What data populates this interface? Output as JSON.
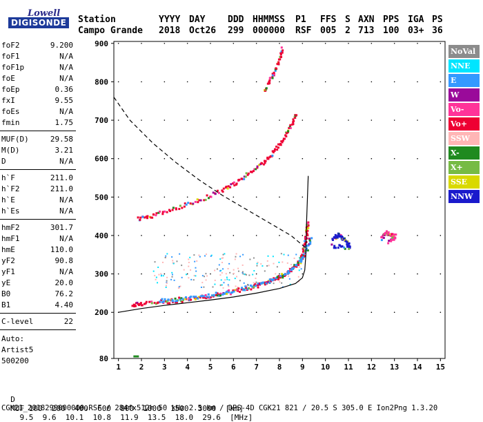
{
  "logo": {
    "top": "Lowell",
    "bottom": "DIGISONDE"
  },
  "header": {
    "labels": [
      "Station",
      "YYYY",
      "DAY",
      "DDD",
      "HHMMSS",
      "P1",
      "FFS",
      "S",
      "AXN",
      "PPS",
      "IGA",
      "PS"
    ],
    "values": [
      "Campo Grande",
      "2018",
      "Oct26",
      "299",
      "000000",
      "RSF",
      "005",
      "2",
      "713",
      "100",
      "03+",
      "36"
    ]
  },
  "params": [
    {
      "k": "foF2",
      "v": "9.200"
    },
    {
      "k": "foF1",
      "v": "N/A"
    },
    {
      "k": "foF1p",
      "v": "N/A"
    },
    {
      "k": "foE",
      "v": "N/A"
    },
    {
      "k": "foEp",
      "v": "0.36"
    },
    {
      "k": "fxI",
      "v": "9.55"
    },
    {
      "k": "foEs",
      "v": "N/A"
    },
    {
      "k": "fmin",
      "v": "1.75"
    },
    {
      "k": "MUF(D)",
      "v": "29.58"
    },
    {
      "k": "M(D)",
      "v": "3.21"
    },
    {
      "k": "D",
      "v": "N/A"
    },
    {
      "k": "h`F",
      "v": "211.0"
    },
    {
      "k": "h`F2",
      "v": "211.0"
    },
    {
      "k": "h`E",
      "v": "N/A"
    },
    {
      "k": "h`Es",
      "v": "N/A"
    },
    {
      "k": "hmF2",
      "v": "301.7"
    },
    {
      "k": "hmF1",
      "v": "N/A"
    },
    {
      "k": "hmE",
      "v": "110.0"
    },
    {
      "k": "yF2",
      "v": "90.8"
    },
    {
      "k": "yF1",
      "v": "N/A"
    },
    {
      "k": "yE",
      "v": "20.0"
    },
    {
      "k": "B0",
      "v": "76.2"
    },
    {
      "k": "B1",
      "v": "4.40"
    },
    {
      "k": "C-level",
      "v": "22"
    }
  ],
  "autoscale": {
    "line1": "Auto:",
    "line2": "Artist5",
    "line3": "500200"
  },
  "legend": [
    {
      "label": "NoVal",
      "color": "#8c8c8c"
    },
    {
      "label": "NNE",
      "color": "#00e5ff"
    },
    {
      "label": "E",
      "color": "#3399ff"
    },
    {
      "label": "W",
      "color": "#9a0a9a"
    },
    {
      "label": "Vo-",
      "color": "#ff3399"
    },
    {
      "label": "Vo+",
      "color": "#ee0033"
    },
    {
      "label": "SSW",
      "color": "#ffb6b6"
    },
    {
      "label": "X-",
      "color": "#1f8a1f"
    },
    {
      "label": "X+",
      "color": "#77bb44"
    },
    {
      "label": "SSE",
      "color": "#d9d900"
    },
    {
      "label": "NNW",
      "color": "#1a1acc"
    }
  ],
  "footer": {
    "d_label": "D",
    "d_values": [
      "100",
      "200",
      "400",
      "600",
      "800",
      "1000",
      "1500",
      "3000",
      "[km]"
    ],
    "muf_label": "MUF",
    "muf_values": [
      "9.5",
      "9.6",
      "10.1",
      "10.8",
      "11.9",
      "13.5",
      "18.0",
      "29.6",
      "[MHz]"
    ],
    "file_line": "CGK21_2018299000000.RSF / 284fx512h 50 kHz 2.5 km / DPS-4D CGK21 821 / 20.5 S 305.0 E Ion2Png 1.3.20"
  },
  "chart_data": {
    "type": "scatter",
    "title": "",
    "xlabel": "",
    "ylabel": "",
    "xlim": [
      0.8,
      15.2
    ],
    "ylim": [
      80,
      905
    ],
    "x_ticks": [
      1,
      2,
      3,
      4,
      5,
      6,
      7,
      8,
      9,
      10,
      11,
      12,
      13,
      14,
      15
    ],
    "y_ticks": [
      80,
      200,
      300,
      400,
      500,
      600,
      700,
      800,
      900
    ],
    "traces": [
      {
        "name": "O-trace F2",
        "color": "#ee0033",
        "points": [
          [
            1.6,
            222
          ],
          [
            2,
            226
          ],
          [
            3,
            230
          ],
          [
            4,
            236
          ],
          [
            5,
            245
          ],
          [
            6,
            256
          ],
          [
            7,
            272
          ],
          [
            7.6,
            285
          ],
          [
            8.2,
            300
          ],
          [
            8.6,
            318
          ],
          [
            8.9,
            340
          ],
          [
            9.05,
            370
          ],
          [
            9.15,
            410
          ],
          [
            9.2,
            440
          ]
        ]
      },
      {
        "name": "X-trace F2",
        "color": "#3399ff",
        "points": [
          [
            2.8,
            232
          ],
          [
            3.5,
            236
          ],
          [
            4.5,
            243
          ],
          [
            5.5,
            252
          ],
          [
            6.5,
            266
          ],
          [
            7.5,
            285
          ],
          [
            8.3,
            305
          ],
          [
            8.8,
            330
          ],
          [
            9.1,
            360
          ],
          [
            9.35,
            400
          ]
        ]
      },
      {
        "name": "Multiple 2F",
        "color": "#ee0033",
        "points": [
          [
            1.8,
            445
          ],
          [
            2.5,
            455
          ],
          [
            3.5,
            475
          ],
          [
            4.5,
            495
          ],
          [
            5.5,
            520
          ],
          [
            6.2,
            545
          ],
          [
            6.9,
            575
          ],
          [
            7.5,
            605
          ],
          [
            8,
            640
          ],
          [
            8.4,
            680
          ],
          [
            8.7,
            720
          ]
        ]
      },
      {
        "name": "Multiple 3F",
        "color": "#ee0033",
        "points": [
          [
            7.3,
            780
          ],
          [
            7.6,
            810
          ],
          [
            7.9,
            850
          ],
          [
            8.1,
            890
          ]
        ]
      },
      {
        "name": "Oblique echoes",
        "color": "#1a1acc",
        "points": [
          [
            10.3,
            390
          ],
          [
            10.5,
            405
          ],
          [
            10.7,
            395
          ],
          [
            10.9,
            385
          ],
          [
            11,
            370
          ],
          [
            10.2,
            375
          ]
        ]
      },
      {
        "name": "Oblique echoes 2",
        "color": "#ff3399",
        "points": [
          [
            12.4,
            395
          ],
          [
            12.6,
            410
          ],
          [
            12.8,
            405
          ],
          [
            13,
            400
          ],
          [
            12.7,
            385
          ]
        ]
      }
    ],
    "profile_solid": [
      [
        1,
        200
      ],
      [
        2,
        210
      ],
      [
        3,
        218
      ],
      [
        4,
        225
      ],
      [
        5,
        232
      ],
      [
        6,
        240
      ],
      [
        7,
        250
      ],
      [
        8,
        262
      ],
      [
        8.7,
        275
      ],
      [
        9,
        290
      ],
      [
        9.1,
        310
      ],
      [
        9.15,
        350
      ],
      [
        9.17,
        420
      ],
      [
        9.2,
        470
      ],
      [
        9.25,
        555
      ]
    ],
    "profile_dashed": [
      [
        0.8,
        760
      ],
      [
        1.5,
        700
      ],
      [
        2.5,
        640
      ],
      [
        3.5,
        590
      ],
      [
        4.5,
        545
      ],
      [
        5.5,
        505
      ],
      [
        6.5,
        470
      ],
      [
        7.5,
        435
      ],
      [
        8.5,
        400
      ],
      [
        9.2,
        365
      ]
    ]
  }
}
